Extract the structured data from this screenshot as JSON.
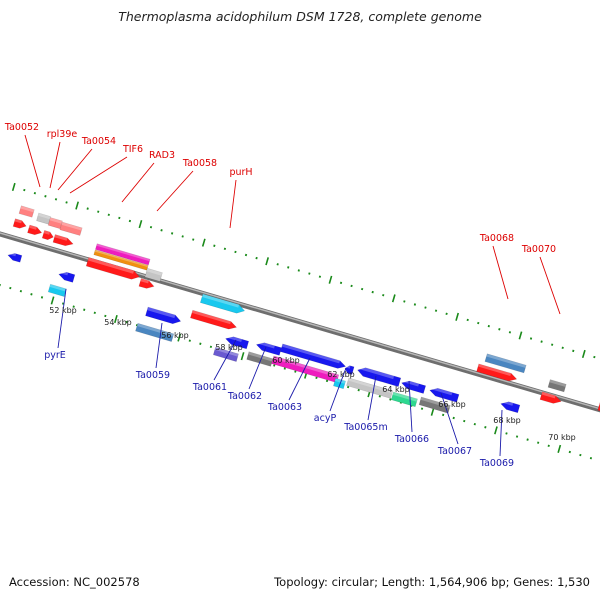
{
  "title": "Thermoplasma acidophilum DSM 1728, complete genome",
  "footer": {
    "accession": "Accession: NC_002578",
    "summary": "Topology: circular; Length: 1,564,906 bp; Genes: 1,530"
  },
  "colors": {
    "red": "#ff1a1a",
    "blue": "#1818ee",
    "cyan": "#19c8ee",
    "steel": "#4a86c0",
    "gray": "#777777",
    "lightgray": "#c4c4c4",
    "pink": "#ff8080",
    "magenta": "#ee1cbe",
    "orange": "#f09010",
    "purple": "#6a5ad0",
    "green": "#2ed890",
    "backbone": "#888888",
    "tick": "#1a8a1a",
    "label_red": "#dd0000",
    "label_blue": "#1a1aaa"
  },
  "kbp_labels": [
    "52 kbp",
    "54 kbp",
    "56 kbp",
    "58 kbp",
    "60 kbp",
    "62 kbp",
    "64 kbp",
    "66 kbp",
    "68 kbp",
    "70 kbp"
  ],
  "top_gene_labels": [
    "Ta0052",
    "rpl39e",
    "Ta0054",
    "TIF6",
    "RAD3",
    "Ta0058",
    "purH",
    "Ta0068",
    "Ta0070"
  ],
  "bottom_gene_labels": [
    "pyrE",
    "Ta0059",
    "Ta0061",
    "Ta0062",
    "Ta0063",
    "acyP",
    "Ta0065m",
    "Ta0066",
    "Ta0067",
    "Ta0069"
  ]
}
